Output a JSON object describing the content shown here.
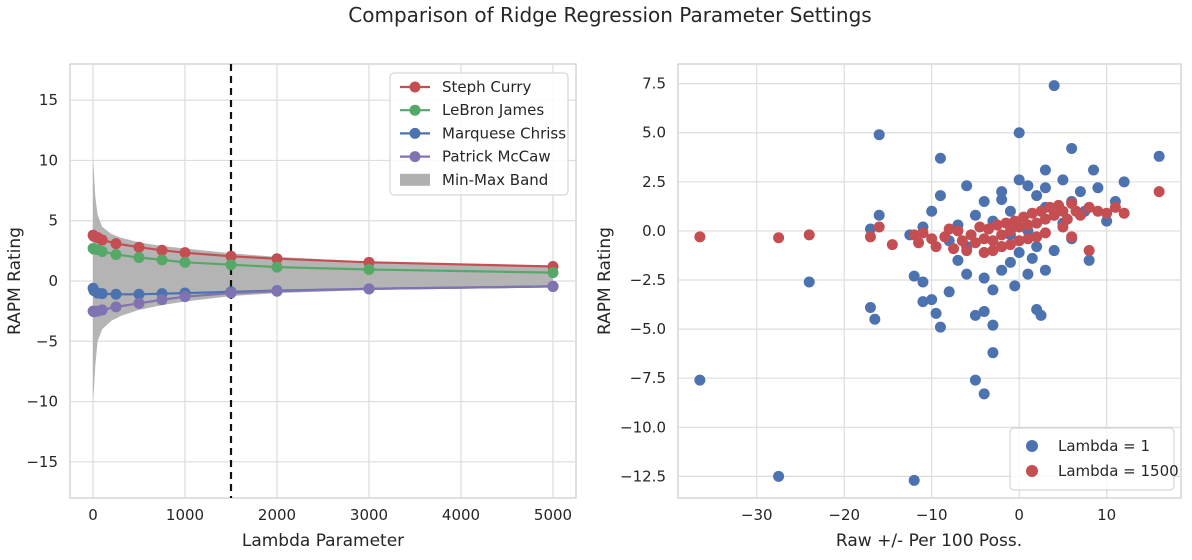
{
  "figure": {
    "title": "Comparison of Ridge Regression Parameter Settings"
  },
  "chart_data": [
    {
      "type": "line",
      "xlabel": "Lambda Parameter",
      "ylabel": "RAPM Rating",
      "xlim": [
        -250,
        5250
      ],
      "ylim": [
        -18,
        18
      ],
      "xticks": [
        0,
        1000,
        2000,
        3000,
        4000,
        5000
      ],
      "yticks": [
        -15,
        -10,
        -5,
        0,
        5,
        10,
        15
      ],
      "grid": true,
      "legend_position": "top-right",
      "vline": {
        "x": 1500,
        "style": "dashed",
        "color": "#111111"
      },
      "x": [
        1,
        10,
        50,
        100,
        250,
        500,
        750,
        1000,
        1500,
        2000,
        3000,
        5000
      ],
      "series": [
        {
          "name": "Steph Curry",
          "color": "#c44e52",
          "values": [
            3.8,
            3.7,
            3.6,
            3.4,
            3.1,
            2.8,
            2.55,
            2.35,
            2.05,
            1.85,
            1.55,
            1.2
          ]
        },
        {
          "name": "LeBron James",
          "color": "#55a868",
          "values": [
            2.7,
            2.65,
            2.6,
            2.45,
            2.2,
            1.95,
            1.75,
            1.55,
            1.35,
            1.15,
            0.95,
            0.7
          ]
        },
        {
          "name": "Marquese Chriss",
          "color": "#4c72b0",
          "values": [
            -0.6,
            -0.8,
            -1.0,
            -1.05,
            -1.1,
            -1.1,
            -1.05,
            -1.0,
            -0.9,
            -0.8,
            -0.65,
            -0.45
          ]
        },
        {
          "name": "Patrick McCaw",
          "color": "#8172b2",
          "values": [
            -2.5,
            -2.55,
            -2.5,
            -2.4,
            -2.15,
            -1.85,
            -1.55,
            -1.3,
            -1.0,
            -0.85,
            -0.65,
            -0.45
          ]
        }
      ],
      "band": {
        "name": "Min-Max Band",
        "color": "#b0b0b0",
        "x": [
          0,
          10,
          25,
          50,
          100,
          200,
          300,
          500,
          750,
          1000,
          1500,
          2000,
          3000,
          4000,
          5000
        ],
        "upper": [
          10,
          9,
          7,
          5.5,
          4.5,
          3.9,
          3.6,
          3.2,
          2.9,
          2.7,
          2.3,
          2.0,
          1.6,
          1.35,
          1.2
        ],
        "lower": [
          -10,
          -9,
          -7,
          -5.0,
          -4.0,
          -3.3,
          -2.9,
          -2.4,
          -2.0,
          -1.7,
          -1.25,
          -1.0,
          -0.75,
          -0.6,
          -0.5
        ]
      }
    },
    {
      "type": "scatter",
      "xlabel": "Raw +/- Per 100 Poss.",
      "ylabel": "RAPM Rating",
      "xlim": [
        -39,
        18.5
      ],
      "ylim": [
        -13.6,
        8.5
      ],
      "xticks": [
        -30,
        -20,
        -10,
        0,
        10
      ],
      "yticks": [
        -12.5,
        -10.0,
        -7.5,
        -5.0,
        -2.5,
        0.0,
        2.5,
        5.0,
        7.5
      ],
      "grid": true,
      "legend_position": "bottom-right",
      "series": [
        {
          "name": "Lambda = 1",
          "color": "#4c72b0",
          "points": [
            [
              4.0,
              7.4
            ],
            [
              0.0,
              5.0
            ],
            [
              -16.0,
              4.9
            ],
            [
              -9.0,
              3.7
            ],
            [
              -16.0,
              0.8
            ],
            [
              -17.0,
              0.1
            ],
            [
              -36.5,
              -7.6
            ],
            [
              -27.5,
              -12.5
            ],
            [
              -12.0,
              -12.7
            ],
            [
              -24.0,
              -2.6
            ],
            [
              -17.0,
              -3.9
            ],
            [
              -16.5,
              -4.5
            ],
            [
              -12.0,
              -2.3
            ],
            [
              -11.0,
              -2.6
            ],
            [
              -10.0,
              -3.5
            ],
            [
              -11.0,
              -3.6
            ],
            [
              -9.0,
              -4.9
            ],
            [
              -9.5,
              -4.2
            ],
            [
              -5.0,
              -4.3
            ],
            [
              -4.0,
              -4.1
            ],
            [
              -3.0,
              -4.8
            ],
            [
              -3.0,
              -6.2
            ],
            [
              -5.0,
              -7.6
            ],
            [
              -4.0,
              -8.3
            ],
            [
              2.0,
              -4.0
            ],
            [
              2.5,
              -4.3
            ],
            [
              8.0,
              -1.5
            ],
            [
              16.0,
              3.8
            ],
            [
              12.0,
              2.5
            ],
            [
              8.5,
              3.1
            ],
            [
              6.0,
              4.2
            ],
            [
              3.0,
              3.1
            ],
            [
              5.0,
              2.6
            ],
            [
              7.0,
              2.0
            ],
            [
              9.0,
              2.2
            ],
            [
              11.0,
              1.5
            ],
            [
              -10.0,
              1.0
            ],
            [
              -9.0,
              1.8
            ],
            [
              -6.0,
              2.3
            ],
            [
              -8.0,
              -0.5
            ],
            [
              -7.0,
              -1.5
            ],
            [
              -6.0,
              -2.2
            ],
            [
              -4.0,
              -2.4
            ],
            [
              -2.0,
              -2.0
            ],
            [
              -1.0,
              -1.6
            ],
            [
              0.0,
              -1.1
            ],
            [
              1.0,
              -2.2
            ],
            [
              3.0,
              -2.0
            ],
            [
              -4.0,
              1.5
            ],
            [
              -2.0,
              2.0
            ],
            [
              -1.0,
              1.0
            ],
            [
              0.0,
              2.6
            ],
            [
              1.0,
              2.3
            ],
            [
              2.0,
              1.8
            ],
            [
              3.0,
              1.2
            ],
            [
              4.0,
              0.8
            ],
            [
              5.0,
              0.4
            ],
            [
              6.0,
              -0.4
            ],
            [
              4.0,
              -1.0
            ],
            [
              -3.0,
              0.5
            ],
            [
              -5.0,
              0.8
            ],
            [
              -6.0,
              -0.8
            ],
            [
              -8.0,
              -3.1
            ],
            [
              -3.0,
              -3.0
            ],
            [
              -2.0,
              -0.8
            ],
            [
              1.0,
              0.0
            ],
            [
              2.0,
              -0.8
            ],
            [
              6.0,
              1.5
            ],
            [
              -1.0,
              -0.2
            ],
            [
              -11.0,
              0.2
            ],
            [
              -12.5,
              -0.2
            ],
            [
              -2.0,
              1.6
            ],
            [
              -7.0,
              0.3
            ],
            [
              3.0,
              2.2
            ],
            [
              7.5,
              1.0
            ],
            [
              10.0,
              0.5
            ],
            [
              -0.5,
              -2.8
            ],
            [
              1.5,
              -1.4
            ]
          ]
        },
        {
          "name": "Lambda = 1500",
          "color": "#c44e52",
          "points": [
            [
              -36.5,
              -0.3
            ],
            [
              -27.5,
              -0.35
            ],
            [
              -24.0,
              -0.2
            ],
            [
              -17.0,
              -0.3
            ],
            [
              -16.0,
              0.2
            ],
            [
              -14.5,
              -0.7
            ],
            [
              -12.0,
              -0.2
            ],
            [
              -11.5,
              -0.6
            ],
            [
              -10.0,
              -0.4
            ],
            [
              -9.5,
              -0.8
            ],
            [
              -8.5,
              -0.3
            ],
            [
              -7.5,
              -0.9
            ],
            [
              -7.0,
              0.0
            ],
            [
              -6.5,
              -0.5
            ],
            [
              -6.0,
              -1.0
            ],
            [
              -5.5,
              -0.2
            ],
            [
              -5.0,
              -0.6
            ],
            [
              -4.5,
              0.2
            ],
            [
              -4.0,
              -0.4
            ],
            [
              -3.5,
              0.1
            ],
            [
              -3.0,
              -0.5
            ],
            [
              -2.5,
              0.3
            ],
            [
              -2.0,
              -0.2
            ],
            [
              -1.5,
              0.4
            ],
            [
              -1.0,
              0.0
            ],
            [
              -0.5,
              0.5
            ],
            [
              0.0,
              0.2
            ],
            [
              0.5,
              0.7
            ],
            [
              1.0,
              0.3
            ],
            [
              1.5,
              0.9
            ],
            [
              2.0,
              0.4
            ],
            [
              2.5,
              1.0
            ],
            [
              3.0,
              0.6
            ],
            [
              3.5,
              1.2
            ],
            [
              4.0,
              0.8
            ],
            [
              4.5,
              1.3
            ],
            [
              5.0,
              1.0
            ],
            [
              5.5,
              0.6
            ],
            [
              6.0,
              1.4
            ],
            [
              6.5,
              1.0
            ],
            [
              7.0,
              0.8
            ],
            [
              8.0,
              1.2
            ],
            [
              9.0,
              1.0
            ],
            [
              10.0,
              0.9
            ],
            [
              11.0,
              1.2
            ],
            [
              12.0,
              0.9
            ],
            [
              16.0,
              2.0
            ],
            [
              8.0,
              -1.0
            ],
            [
              6.0,
              -0.3
            ],
            [
              5.0,
              0.2
            ],
            [
              3.0,
              -0.1
            ],
            [
              2.0,
              -0.3
            ],
            [
              1.0,
              -0.4
            ],
            [
              0.0,
              -0.5
            ],
            [
              -1.0,
              -0.7
            ],
            [
              -2.0,
              -0.8
            ],
            [
              -3.0,
              -1.0
            ],
            [
              -4.0,
              -1.1
            ],
            [
              -8.0,
              0.1
            ],
            [
              -11.0,
              -0.1
            ]
          ]
        }
      ]
    }
  ]
}
